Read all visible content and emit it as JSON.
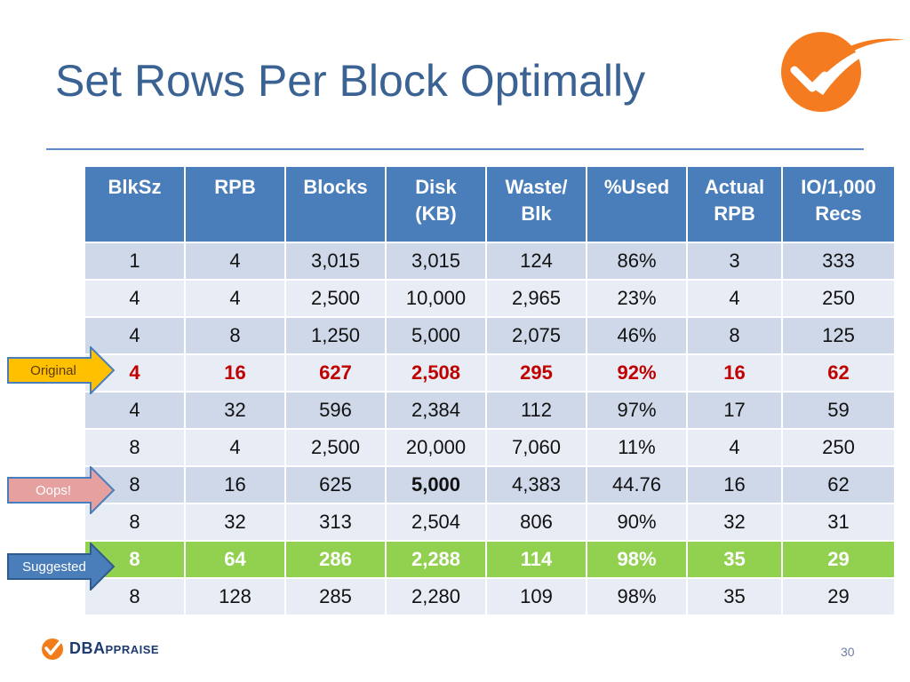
{
  "slide": {
    "title": "Set Rows Per Block Optimally",
    "page_number": "30"
  },
  "table": {
    "headers": [
      [
        "BlkSz"
      ],
      [
        "RPB"
      ],
      [
        "Blocks"
      ],
      [
        "Disk",
        "(KB)"
      ],
      [
        "Waste/",
        "Blk"
      ],
      [
        "%Used"
      ],
      [
        "Actual",
        "RPB"
      ],
      [
        "IO/1,000",
        "Recs"
      ]
    ],
    "rows": [
      [
        "1",
        "4",
        "3,015",
        "3,015",
        "124",
        "86%",
        "3",
        "333"
      ],
      [
        "4",
        "4",
        "2,500",
        "10,000",
        "2,965",
        "23%",
        "4",
        "250"
      ],
      [
        "4",
        "8",
        "1,250",
        "5,000",
        "2,075",
        "46%",
        "8",
        "125"
      ],
      [
        "4",
        "16",
        "627",
        "2,508",
        "295",
        "92%",
        "16",
        "62"
      ],
      [
        "4",
        "32",
        "596",
        "2,384",
        "112",
        "97%",
        "17",
        "59"
      ],
      [
        "8",
        "4",
        "2,500",
        "20,000",
        "7,060",
        "11%",
        "4",
        "250"
      ],
      [
        "8",
        "16",
        "625",
        "5,000",
        "4,383",
        "44.76",
        "16",
        "62"
      ],
      [
        "8",
        "32",
        "313",
        "2,504",
        "806",
        "90%",
        "32",
        "31"
      ],
      [
        "8",
        "64",
        "286",
        "2,288",
        "114",
        "98%",
        "35",
        "29"
      ],
      [
        "8",
        "128",
        "285",
        "2,280",
        "109",
        "98%",
        "35",
        "29"
      ]
    ]
  },
  "callouts": {
    "original": {
      "label": "Original",
      "fill": "#ffc000",
      "text_color": "#5a3a00"
    },
    "oops": {
      "label": "Oops!",
      "fill": "#e6a0a0",
      "text_color": "#ffffff"
    },
    "suggested": {
      "label": "Suggested",
      "fill": "#4a7ebb",
      "text_color": "#ffffff"
    }
  },
  "footer": {
    "brand_big_1": "DBA",
    "brand_small": "PPRAISE",
    "brand_accent": "#f07d1a",
    "brand_color": "#1d3b6e"
  },
  "colors": {
    "title": "#3a6293",
    "header_bg": "#4a7ebb",
    "row_odd": "#cfd8e9",
    "row_even": "#e8ecf5",
    "highlight_red": "#c00000",
    "highlight_green": "#92d050",
    "logo_orange": "#f47b20"
  }
}
